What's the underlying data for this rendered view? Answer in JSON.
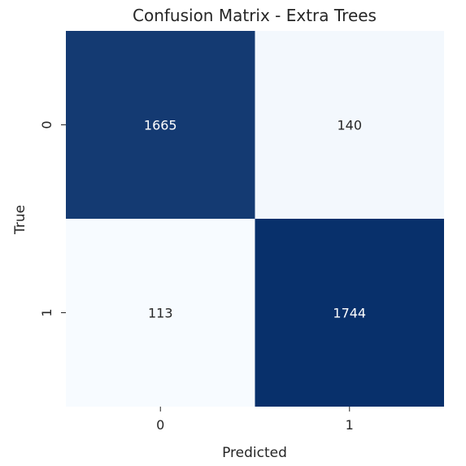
{
  "chart_data": {
    "type": "heatmap",
    "title": "Confusion Matrix - Extra Trees",
    "xlabel": "Predicted",
    "ylabel": "True",
    "x_categories": [
      "0",
      "1"
    ],
    "y_categories": [
      "0",
      "1"
    ],
    "values": [
      [
        1665,
        140
      ],
      [
        113,
        1744
      ]
    ],
    "colormap": "Blues",
    "colors": {
      "low": "#f7fbff",
      "high": "#08306b",
      "text_dark": "#262626",
      "text_light": "#ffffff"
    },
    "colorbar": false,
    "grid": false
  }
}
